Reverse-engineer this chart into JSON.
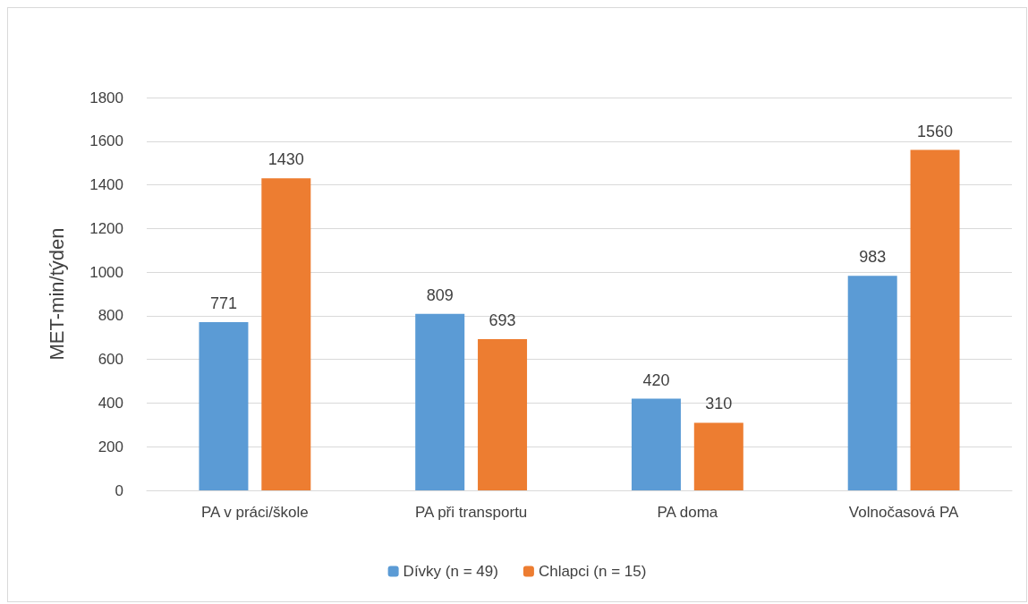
{
  "chart_data": {
    "type": "bar",
    "ylabel": "MET-min/týden",
    "categories": [
      "PA v práci/škole",
      "PA při transportu",
      "PA doma",
      "Volnočasová PA"
    ],
    "series": [
      {
        "name": "Dívky (n = 49)",
        "color": "#5b9bd5",
        "values": [
          771,
          809,
          420,
          983
        ]
      },
      {
        "name": "Chlapci (n = 15)",
        "color": "#ed7d31",
        "values": [
          1430,
          693,
          310,
          1560
        ]
      }
    ],
    "ylim": [
      0,
      1800
    ],
    "yticks": [
      0,
      200,
      400,
      600,
      800,
      1000,
      1200,
      1400,
      1600,
      1800
    ],
    "grid": "y",
    "legend": "bottom",
    "data_labels": true
  }
}
